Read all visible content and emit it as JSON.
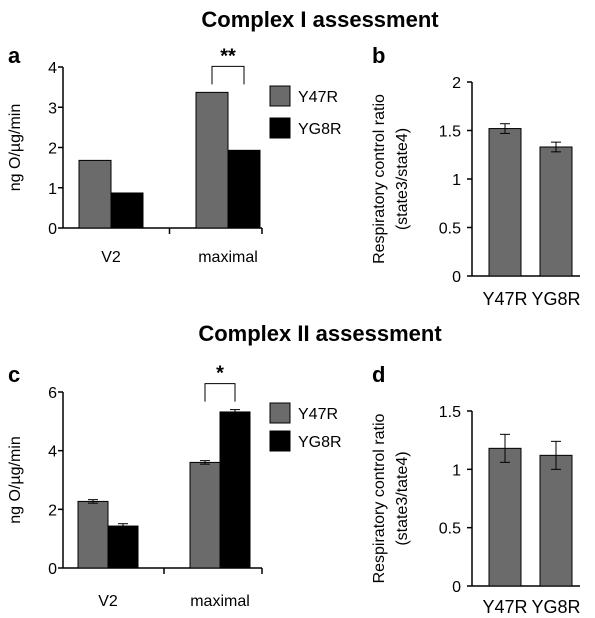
{
  "sections": {
    "top_title": "Complex I assessment",
    "bottom_title": "Complex II assessment"
  },
  "chart_data": [
    {
      "panel": "a",
      "type": "bar",
      "categories": [
        "V2",
        "maximal"
      ],
      "series": [
        {
          "name": "Y47R",
          "values": [
            1.68,
            3.37
          ],
          "color": "#6b6b6b"
        },
        {
          "name": "YG8R",
          "values": [
            0.87,
            1.93
          ],
          "color": "#000000"
        }
      ],
      "ylabel": "ng O/µg/min",
      "ylim": [
        0,
        4
      ],
      "yticks": [
        "0",
        "1",
        "2",
        "3",
        "4"
      ],
      "legend": "right",
      "significance": [
        {
          "category": "maximal",
          "label": "**"
        }
      ]
    },
    {
      "panel": "b",
      "type": "bar",
      "categories": [
        "Y47R",
        "YG8R"
      ],
      "values": [
        1.52,
        1.33
      ],
      "errors": [
        0.05,
        0.05
      ],
      "color": "#6b6b6b",
      "ylabel_lines": [
        "Respiratory control ratio",
        "(state3/state4)"
      ],
      "ylim": [
        0,
        2
      ],
      "yticks": [
        "0",
        "0.5",
        "1",
        "1.5",
        "2"
      ]
    },
    {
      "panel": "c",
      "type": "bar",
      "categories": [
        "V2",
        "maximal"
      ],
      "series": [
        {
          "name": "Y47R",
          "values": [
            2.27,
            3.6
          ],
          "errors": [
            0.06,
            0.06
          ],
          "color": "#6b6b6b"
        },
        {
          "name": "YG8R",
          "values": [
            1.43,
            5.32
          ],
          "errors": [
            0.08,
            0.08
          ],
          "color": "#000000"
        }
      ],
      "ylabel": "ng O/µg/min",
      "ylim": [
        0,
        6
      ],
      "yticks": [
        "0",
        "2",
        "4",
        "6"
      ],
      "legend": "right",
      "significance": [
        {
          "category": "maximal",
          "label": "*"
        }
      ]
    },
    {
      "panel": "d",
      "type": "bar",
      "categories": [
        "Y47R",
        "YG8R"
      ],
      "values": [
        1.18,
        1.12
      ],
      "errors": [
        0.12,
        0.12
      ],
      "color": "#6b6b6b",
      "ylabel_lines": [
        "Respiratory control ratio",
        "(state3/tate4)"
      ],
      "ylim": [
        0,
        1.5
      ],
      "yticks": [
        "0",
        "0.5",
        "1",
        "1.5"
      ]
    }
  ]
}
